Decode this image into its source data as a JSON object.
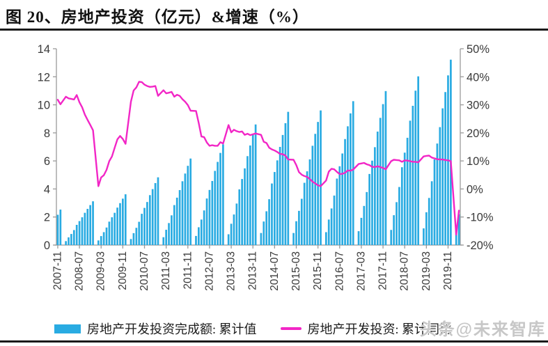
{
  "window": {
    "title": "图 20、房地产投资（亿元）&增速（%）",
    "watermark": "头条@未来智库"
  },
  "legend": {
    "items": [
      {
        "label": "房地产开发投资完成额: 累计值",
        "marker": "bar",
        "color": "#29ABE2"
      },
      {
        "label": "房地产开发投资: 累计同比",
        "marker": "line",
        "color": "#F226C6"
      }
    ]
  },
  "colors": {
    "bar": "#29ABE2",
    "line": "#F226C6",
    "axis": "#9A9A9A",
    "tick_text": "#3A3A3A",
    "rule": "#1A1A1A",
    "watermark": "#C7C7C7"
  },
  "chart_data": {
    "type": "combo_bar_line",
    "title": "图 20、房地产投资（亿元）&增速（%）",
    "grid": false,
    "legend_position": "bottom",
    "x_start": "2007-11",
    "x_end": "2020-03",
    "x_tick_labels": [
      "2007-11",
      "2008-07",
      "2009-03",
      "2009-11",
      "2010-07",
      "2011-03",
      "2011-11",
      "2012-07",
      "2013-03",
      "2013-11",
      "2014-07",
      "2015-03",
      "2015-11",
      "2016-07",
      "2017-03",
      "2017-11",
      "2018-07",
      "2019-03",
      "2019-11"
    ],
    "left_axis": {
      "min": 0,
      "max": 14,
      "tick_values": [
        0,
        2,
        4,
        6,
        8,
        10,
        12,
        14
      ],
      "tick_labels": [
        "0",
        "2",
        "4",
        "6",
        "8",
        "10",
        "12",
        "14"
      ]
    },
    "right_axis": {
      "min": -20,
      "max": 50,
      "tick_values": [
        -20,
        -10,
        0,
        10,
        20,
        30,
        40,
        50
      ],
      "tick_labels": [
        "-20%",
        "-10%",
        "0%",
        "10%",
        "20%",
        "30%",
        "40%",
        "50%"
      ]
    },
    "x": [
      "2007-11",
      "2007-12",
      "2008-02",
      "2008-03",
      "2008-04",
      "2008-05",
      "2008-06",
      "2008-07",
      "2008-08",
      "2008-09",
      "2008-10",
      "2008-11",
      "2008-12",
      "2009-02",
      "2009-03",
      "2009-04",
      "2009-05",
      "2009-06",
      "2009-07",
      "2009-08",
      "2009-09",
      "2009-10",
      "2009-11",
      "2009-12",
      "2010-02",
      "2010-03",
      "2010-04",
      "2010-05",
      "2010-06",
      "2010-07",
      "2010-08",
      "2010-09",
      "2010-10",
      "2010-11",
      "2010-12",
      "2011-02",
      "2011-03",
      "2011-04",
      "2011-05",
      "2011-06",
      "2011-07",
      "2011-08",
      "2011-09",
      "2011-10",
      "2011-11",
      "2011-12",
      "2012-02",
      "2012-03",
      "2012-04",
      "2012-05",
      "2012-06",
      "2012-07",
      "2012-08",
      "2012-09",
      "2012-10",
      "2012-11",
      "2012-12",
      "2013-02",
      "2013-03",
      "2013-04",
      "2013-05",
      "2013-06",
      "2013-07",
      "2013-08",
      "2013-09",
      "2013-10",
      "2013-11",
      "2013-12",
      "2014-02",
      "2014-03",
      "2014-04",
      "2014-05",
      "2014-06",
      "2014-07",
      "2014-08",
      "2014-09",
      "2014-10",
      "2014-11",
      "2014-12",
      "2015-02",
      "2015-03",
      "2015-04",
      "2015-05",
      "2015-06",
      "2015-07",
      "2015-08",
      "2015-09",
      "2015-10",
      "2015-11",
      "2015-12",
      "2016-02",
      "2016-03",
      "2016-04",
      "2016-05",
      "2016-06",
      "2016-07",
      "2016-08",
      "2016-09",
      "2016-10",
      "2016-11",
      "2016-12",
      "2017-02",
      "2017-03",
      "2017-04",
      "2017-05",
      "2017-06",
      "2017-07",
      "2017-08",
      "2017-09",
      "2017-10",
      "2017-11",
      "2017-12",
      "2018-02",
      "2018-03",
      "2018-04",
      "2018-05",
      "2018-06",
      "2018-07",
      "2018-08",
      "2018-09",
      "2018-10",
      "2018-11",
      "2018-12",
      "2019-02",
      "2019-03",
      "2019-04",
      "2019-05",
      "2019-06",
      "2019-07",
      "2019-08",
      "2019-09",
      "2019-10",
      "2019-11",
      "2019-12",
      "2020-02",
      "2020-03"
    ],
    "series": [
      {
        "name": "房地产开发投资完成额: 累计值",
        "type": "bar",
        "axis": "left",
        "color": "#29ABE2",
        "values": [
          2.16,
          2.53,
          0.28,
          0.55,
          0.79,
          1.07,
          1.44,
          1.71,
          1.98,
          2.3,
          2.58,
          2.85,
          3.12,
          0.33,
          0.64,
          0.92,
          1.25,
          1.67,
          1.98,
          2.3,
          2.67,
          2.99,
          3.31,
          3.62,
          0.43,
          0.85,
          1.23,
          1.66,
          2.23,
          2.65,
          3.07,
          3.56,
          3.99,
          4.42,
          4.83,
          0.56,
          1.09,
          1.57,
          2.12,
          2.85,
          3.38,
          3.92,
          4.55,
          5.1,
          5.65,
          6.17,
          0.65,
          1.27,
          1.82,
          2.47,
          3.32,
          3.93,
          4.57,
          5.29,
          5.93,
          6.57,
          7.18,
          0.77,
          1.52,
          2.18,
          2.96,
          3.97,
          4.71,
          5.47,
          6.34,
          7.1,
          7.87,
          8.6,
          0.86,
          1.68,
          2.41,
          3.27,
          4.39,
          5.21,
          6.04,
          7.0,
          7.85,
          8.69,
          9.5,
          0.86,
          1.7,
          2.44,
          3.3,
          4.44,
          5.26,
          6.11,
          7.08,
          7.93,
          8.78,
          9.6,
          0.92,
          1.82,
          2.61,
          3.53,
          4.74,
          5.62,
          6.53,
          7.56,
          8.47,
          9.39,
          10.26,
          0.99,
          1.94,
          2.79,
          3.78,
          5.07,
          6.02,
          6.98,
          8.09,
          9.07,
          10.05,
          10.98,
          1.08,
          2.13,
          3.06,
          4.14,
          5.55,
          6.59,
          7.65,
          8.87,
          9.93,
          11.01,
          12.03,
          1.19,
          2.34,
          3.36,
          4.55,
          6.11,
          7.24,
          8.41,
          9.75,
          10.91,
          12.1,
          13.22,
          1.01,
          2.2
        ]
      },
      {
        "name": "房地产开发投资: 累计同比",
        "type": "line",
        "axis": "right",
        "unit": "%",
        "color": "#F226C6",
        "values": [
          31.8,
          30.2,
          32.9,
          32.3,
          32.1,
          31.9,
          33.5,
          30.9,
          29.1,
          26.5,
          24.6,
          22.8,
          20.9,
          1.0,
          4.1,
          4.9,
          6.8,
          9.9,
          11.6,
          14.7,
          17.7,
          18.9,
          17.8,
          16.1,
          31.1,
          35.1,
          36.2,
          38.2,
          38.1,
          37.2,
          36.7,
          36.4,
          36.5,
          36.7,
          33.2,
          35.2,
          34.1,
          34.3,
          34.6,
          32.9,
          33.6,
          33.2,
          32.0,
          31.1,
          29.9,
          27.9,
          27.8,
          23.5,
          18.7,
          18.5,
          16.6,
          15.4,
          15.6,
          15.4,
          15.4,
          16.7,
          16.2,
          22.8,
          20.2,
          21.1,
          20.6,
          20.3,
          20.5,
          19.3,
          19.7,
          19.2,
          19.5,
          19.8,
          19.3,
          16.8,
          16.4,
          14.7,
          14.1,
          13.7,
          13.2,
          12.5,
          12.4,
          11.9,
          10.5,
          10.4,
          8.5,
          6.0,
          5.1,
          4.6,
          4.3,
          3.5,
          2.6,
          2.0,
          1.3,
          1.0,
          3.0,
          6.2,
          7.2,
          7.0,
          6.1,
          5.3,
          5.4,
          5.8,
          6.6,
          6.5,
          6.9,
          8.9,
          9.1,
          9.3,
          8.8,
          8.5,
          7.9,
          7.8,
          8.1,
          7.8,
          7.5,
          7.0,
          9.9,
          10.4,
          10.3,
          10.2,
          9.7,
          10.2,
          10.1,
          9.9,
          9.7,
          9.7,
          9.5,
          11.6,
          11.8,
          11.9,
          11.2,
          10.9,
          10.6,
          10.5,
          10.5,
          10.3,
          10.2,
          9.9,
          -16.3,
          -7.7
        ]
      }
    ]
  }
}
